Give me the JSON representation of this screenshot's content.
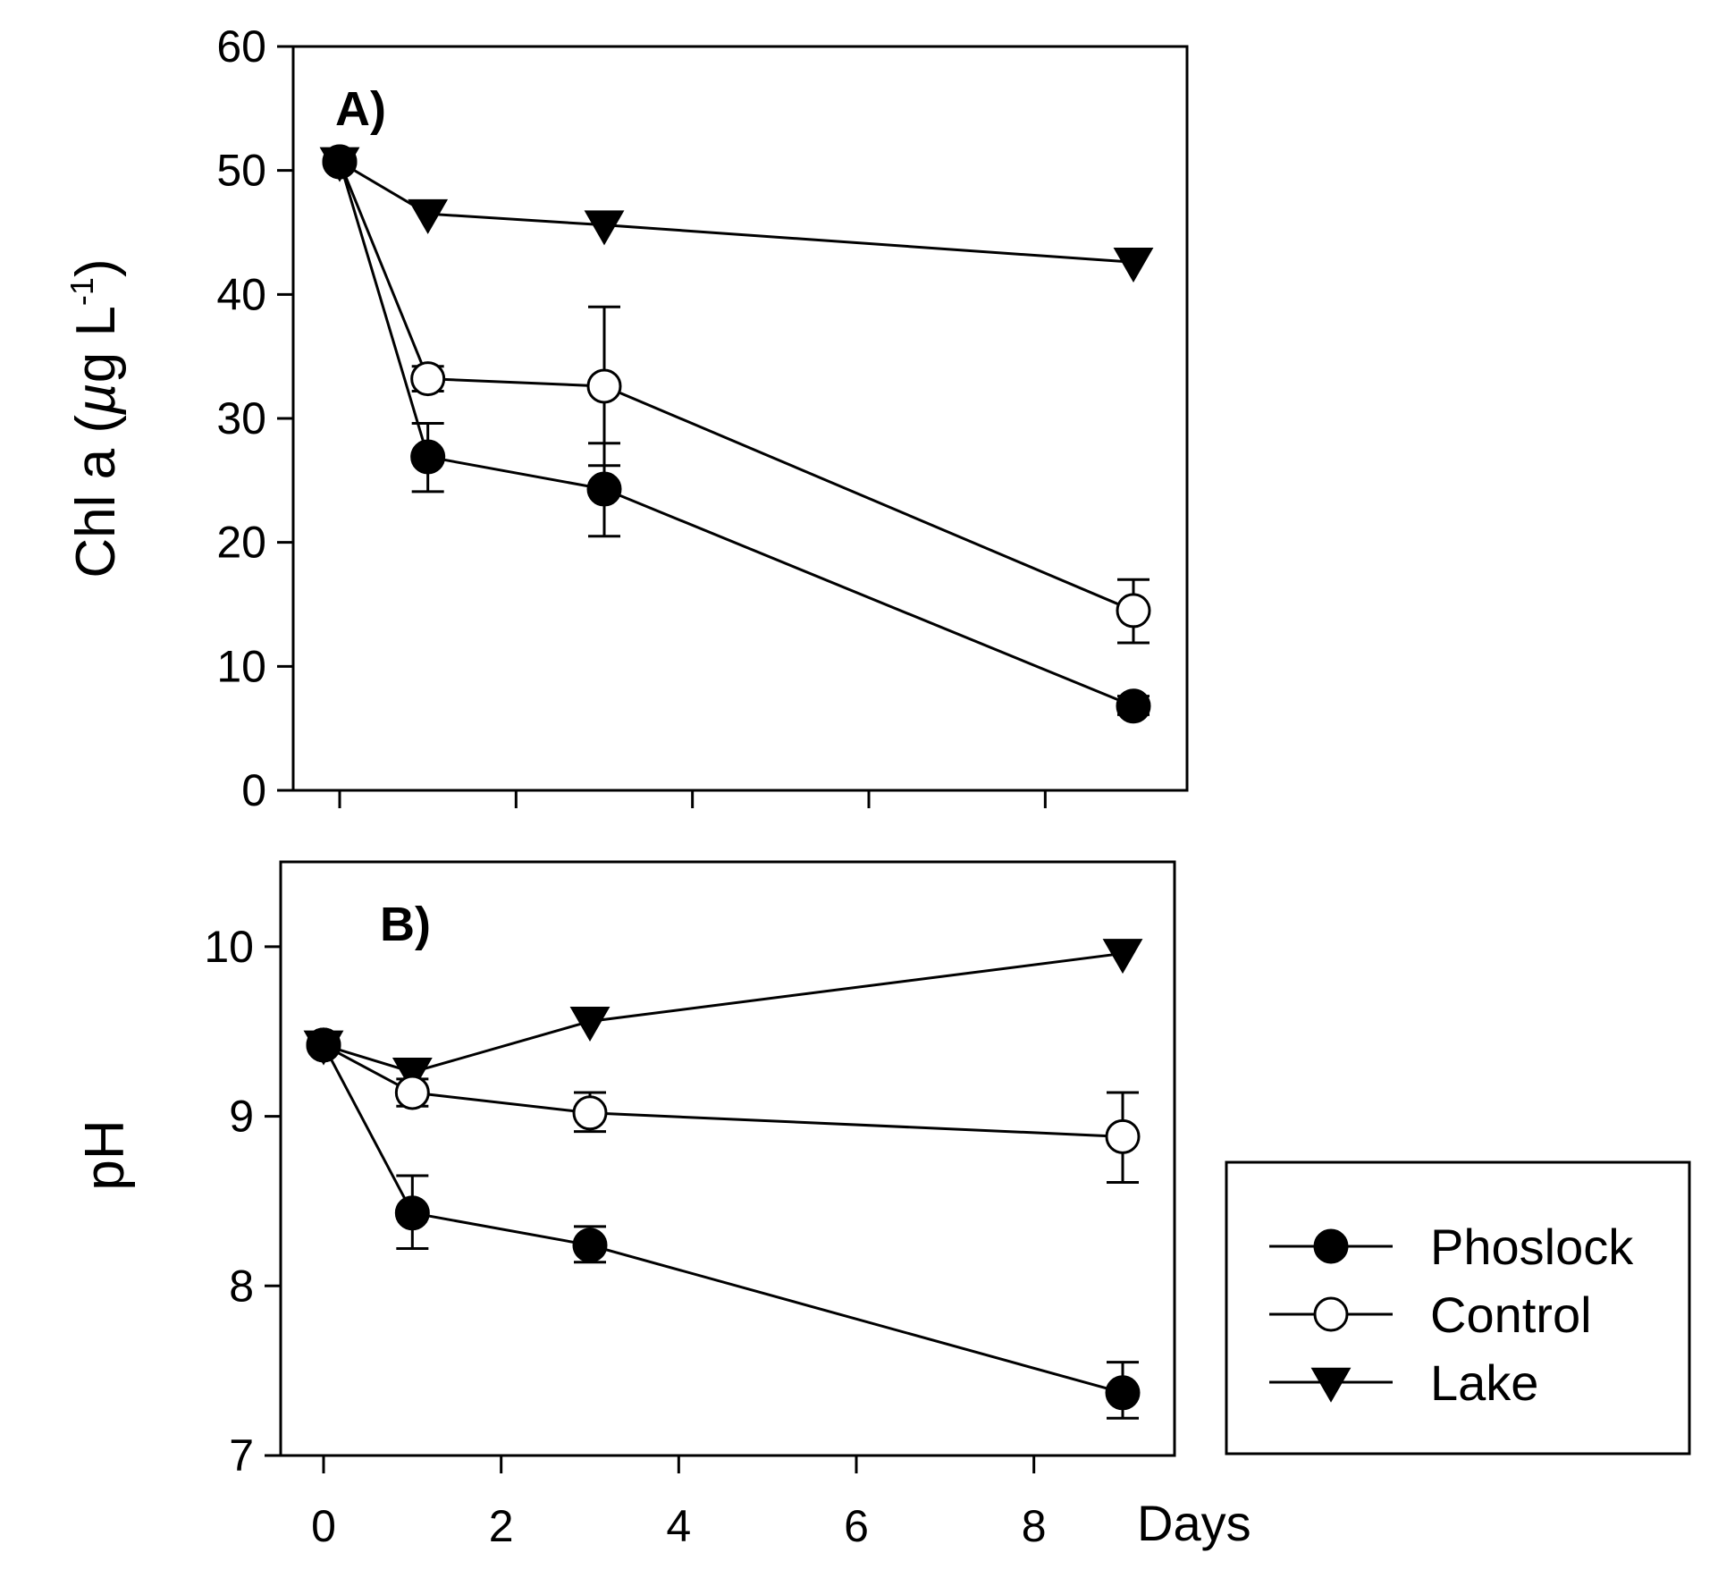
{
  "chart_data": [
    {
      "type": "line",
      "panel_label": "A)",
      "ylabel": "Chl a (µg L-1)",
      "ylabel_parts": {
        "lead": "Chl a (",
        "mu": "µ",
        "unit": "g L",
        "exponent": "-1",
        "close": ")"
      },
      "xlabel": "",
      "xlim": [
        -0.4,
        9.5
      ],
      "ylim": [
        0,
        60
      ],
      "yticks": [
        0,
        10,
        20,
        30,
        40,
        50,
        60
      ],
      "xticks": [
        0,
        2,
        4,
        6,
        8
      ],
      "x_tick_labels_shown": false,
      "series": [
        {
          "name": "Phoslock",
          "marker": "filled-circle",
          "x": [
            0,
            1,
            3,
            9
          ],
          "y": [
            50.7,
            26.9,
            24.3,
            6.8
          ],
          "err_high": [
            0,
            29.6,
            28.0,
            7.6
          ],
          "err_low": [
            0,
            24.1,
            20.5,
            6.1
          ]
        },
        {
          "name": "Control",
          "marker": "open-circle",
          "x": [
            0,
            1,
            3,
            9
          ],
          "y": [
            50.7,
            33.2,
            32.6,
            14.5
          ],
          "err_high": [
            0,
            34.2,
            39.0,
            17.0
          ],
          "err_low": [
            0,
            32.2,
            26.2,
            11.9
          ]
        },
        {
          "name": "Lake",
          "marker": "filled-triangle-down",
          "x": [
            0,
            1,
            3,
            9
          ],
          "y": [
            50.7,
            46.5,
            45.6,
            42.6
          ],
          "err_high": [
            0,
            0,
            0,
            0
          ],
          "err_low": [
            0,
            0,
            0,
            0
          ]
        }
      ]
    },
    {
      "type": "line",
      "panel_label": "B)",
      "ylabel": "pH",
      "xlabel": "Days",
      "xlim": [
        -0.4,
        9.5
      ],
      "ylim": [
        7,
        10.5
      ],
      "yticks": [
        7,
        8,
        9,
        10
      ],
      "ytick_labels": [
        "7",
        "8",
        "9",
        "10"
      ],
      "xticks": [
        0,
        2,
        4,
        6,
        8
      ],
      "xtick_labels": [
        "0",
        "2",
        "4",
        "6",
        "8"
      ],
      "x_tick_labels_shown": true,
      "series": [
        {
          "name": "Phoslock",
          "marker": "filled-circle",
          "x": [
            0,
            1,
            3,
            9
          ],
          "y": [
            9.42,
            8.43,
            8.24,
            7.37
          ],
          "err_high": [
            0,
            8.65,
            8.35,
            7.55
          ],
          "err_low": [
            0,
            8.22,
            8.14,
            7.22
          ]
        },
        {
          "name": "Control",
          "marker": "open-circle",
          "x": [
            0,
            1,
            3,
            9
          ],
          "y": [
            9.42,
            9.14,
            9.02,
            8.88
          ],
          "err_high": [
            0,
            9.22,
            9.14,
            9.14
          ],
          "err_low": [
            0,
            9.06,
            8.91,
            8.61
          ]
        },
        {
          "name": "Lake",
          "marker": "filled-triangle-down",
          "x": [
            0,
            1,
            3,
            9
          ],
          "y": [
            9.42,
            9.26,
            9.56,
            9.96
          ],
          "err_high": [
            0,
            0,
            0,
            0
          ],
          "err_low": [
            0,
            0,
            0,
            0
          ]
        }
      ]
    }
  ],
  "legend": {
    "placement": "bottom-right",
    "items": [
      {
        "label": "Phoslock",
        "marker": "filled-circle"
      },
      {
        "label": "Control",
        "marker": "open-circle"
      },
      {
        "label": "Lake",
        "marker": "filled-triangle-down"
      }
    ]
  },
  "colors": {
    "ink": "#000000",
    "background": "#ffffff"
  }
}
